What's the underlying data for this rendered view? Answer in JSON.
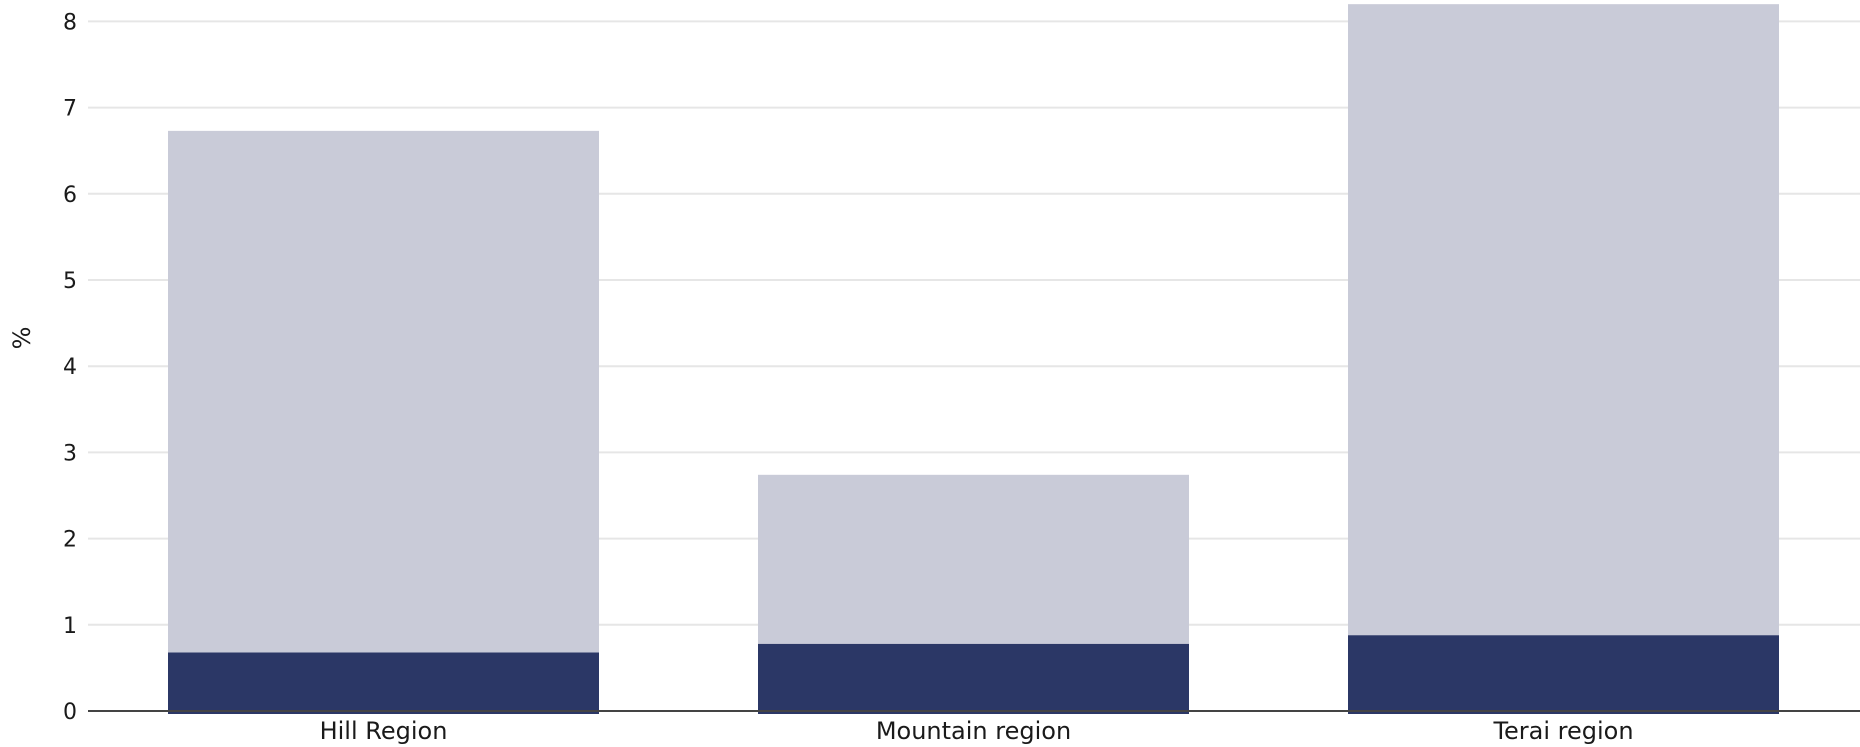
{
  "chart_data": {
    "type": "bar",
    "stacked": true,
    "title": "",
    "xlabel": "",
    "ylabel": "%",
    "ylim": [
      0,
      8.2
    ],
    "yticks": [
      0,
      1,
      2,
      3,
      4,
      5,
      6,
      7,
      8
    ],
    "grid": true,
    "legend": "none",
    "categories": [
      "Hill Region",
      "Mountain region",
      "Terai region"
    ],
    "series": [
      {
        "values": [
          0.68,
          0.78,
          0.88
        ],
        "color": "#2b3766"
      },
      {
        "values": [
          6.05,
          1.96,
          7.32
        ],
        "color": "#c9cbd8"
      }
    ]
  }
}
